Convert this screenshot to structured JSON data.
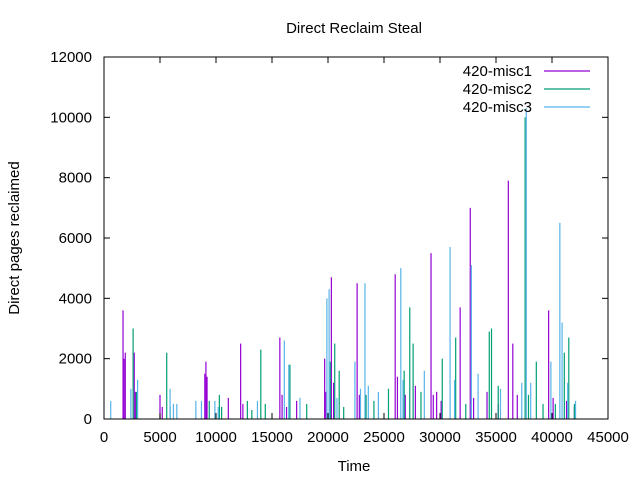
{
  "chart_data": {
    "type": "bar",
    "title": "Direct Reclaim Steal",
    "xlabel": "Time",
    "ylabel": "Direct pages reclaimed",
    "xlim": [
      0,
      45000
    ],
    "ylim": [
      0,
      12000
    ],
    "x_ticks": [
      0,
      5000,
      10000,
      15000,
      20000,
      25000,
      30000,
      35000,
      40000,
      45000
    ],
    "y_ticks": [
      0,
      2000,
      4000,
      6000,
      8000,
      10000,
      12000
    ],
    "grid": false,
    "legend_position": "top-right",
    "series": [
      {
        "name": "420-misc1",
        "color": "#9400d3",
        "points": [
          [
            1700,
            3600
          ],
          [
            1800,
            2000
          ],
          [
            1900,
            2200
          ],
          [
            2700,
            2200
          ],
          [
            2800,
            900
          ],
          [
            5000,
            800
          ],
          [
            5200,
            400
          ],
          [
            9000,
            1500
          ],
          [
            9100,
            1900
          ],
          [
            9200,
            1400
          ],
          [
            11100,
            700
          ],
          [
            12200,
            2500
          ],
          [
            12400,
            500
          ],
          [
            15700,
            2700
          ],
          [
            15900,
            800
          ],
          [
            16300,
            400
          ],
          [
            17200,
            600
          ],
          [
            19700,
            2000
          ],
          [
            19800,
            900
          ],
          [
            20300,
            4700
          ],
          [
            20500,
            1200
          ],
          [
            22600,
            4500
          ],
          [
            22800,
            800
          ],
          [
            26000,
            4800
          ],
          [
            26200,
            1400
          ],
          [
            26900,
            800
          ],
          [
            27800,
            1100
          ],
          [
            29200,
            5500
          ],
          [
            29400,
            800
          ],
          [
            29700,
            900
          ],
          [
            30100,
            600
          ],
          [
            31800,
            3700
          ],
          [
            32700,
            7000
          ],
          [
            33000,
            700
          ],
          [
            34200,
            900
          ],
          [
            35200,
            500
          ],
          [
            36100,
            7900
          ],
          [
            36500,
            2500
          ],
          [
            36900,
            800
          ],
          [
            39700,
            3600
          ],
          [
            40100,
            700
          ],
          [
            41300,
            600
          ],
          [
            42000,
            400
          ]
        ]
      },
      {
        "name": "420-misc2",
        "color": "#009e73",
        "points": [
          [
            2600,
            3000
          ],
          [
            2900,
            900
          ],
          [
            5600,
            2200
          ],
          [
            5900,
            400
          ],
          [
            9400,
            600
          ],
          [
            10300,
            800
          ],
          [
            10500,
            400
          ],
          [
            12800,
            600
          ],
          [
            13200,
            300
          ],
          [
            14000,
            2300
          ],
          [
            14400,
            500
          ],
          [
            16600,
            1800
          ],
          [
            18100,
            500
          ],
          [
            20200,
            1900
          ],
          [
            20600,
            2500
          ],
          [
            21000,
            1600
          ],
          [
            21400,
            400
          ],
          [
            23400,
            800
          ],
          [
            24100,
            600
          ],
          [
            25400,
            1000
          ],
          [
            26800,
            1600
          ],
          [
            27300,
            3700
          ],
          [
            27600,
            2500
          ],
          [
            28300,
            900
          ],
          [
            30200,
            2000
          ],
          [
            31400,
            2700
          ],
          [
            32300,
            500
          ],
          [
            34400,
            2900
          ],
          [
            34600,
            3000
          ],
          [
            35200,
            1100
          ],
          [
            37600,
            10000
          ],
          [
            37900,
            800
          ],
          [
            38600,
            1900
          ],
          [
            39200,
            500
          ],
          [
            40300,
            500
          ],
          [
            41100,
            2200
          ],
          [
            41500,
            2700
          ],
          [
            42000,
            500
          ]
        ]
      },
      {
        "name": "420-misc3",
        "color": "#56b4e9",
        "points": [
          [
            600,
            600
          ],
          [
            2400,
            1000
          ],
          [
            3000,
            1300
          ],
          [
            5900,
            1000
          ],
          [
            6200,
            500
          ],
          [
            6500,
            500
          ],
          [
            8200,
            600
          ],
          [
            8700,
            600
          ],
          [
            9900,
            600
          ],
          [
            10200,
            400
          ],
          [
            13700,
            600
          ],
          [
            16100,
            2600
          ],
          [
            16500,
            1800
          ],
          [
            17500,
            700
          ],
          [
            19900,
            4000
          ],
          [
            20100,
            4300
          ],
          [
            20800,
            700
          ],
          [
            22400,
            1900
          ],
          [
            22900,
            1000
          ],
          [
            23300,
            4500
          ],
          [
            23600,
            1100
          ],
          [
            24500,
            900
          ],
          [
            26500,
            5000
          ],
          [
            26700,
            1300
          ],
          [
            28600,
            1600
          ],
          [
            30900,
            5700
          ],
          [
            31300,
            1300
          ],
          [
            32800,
            5100
          ],
          [
            33400,
            1500
          ],
          [
            35400,
            1000
          ],
          [
            37300,
            1200
          ],
          [
            37700,
            10300
          ],
          [
            38100,
            1200
          ],
          [
            39900,
            1900
          ],
          [
            40700,
            6500
          ],
          [
            40900,
            3200
          ],
          [
            41400,
            1200
          ],
          [
            42100,
            600
          ]
        ]
      }
    ]
  }
}
